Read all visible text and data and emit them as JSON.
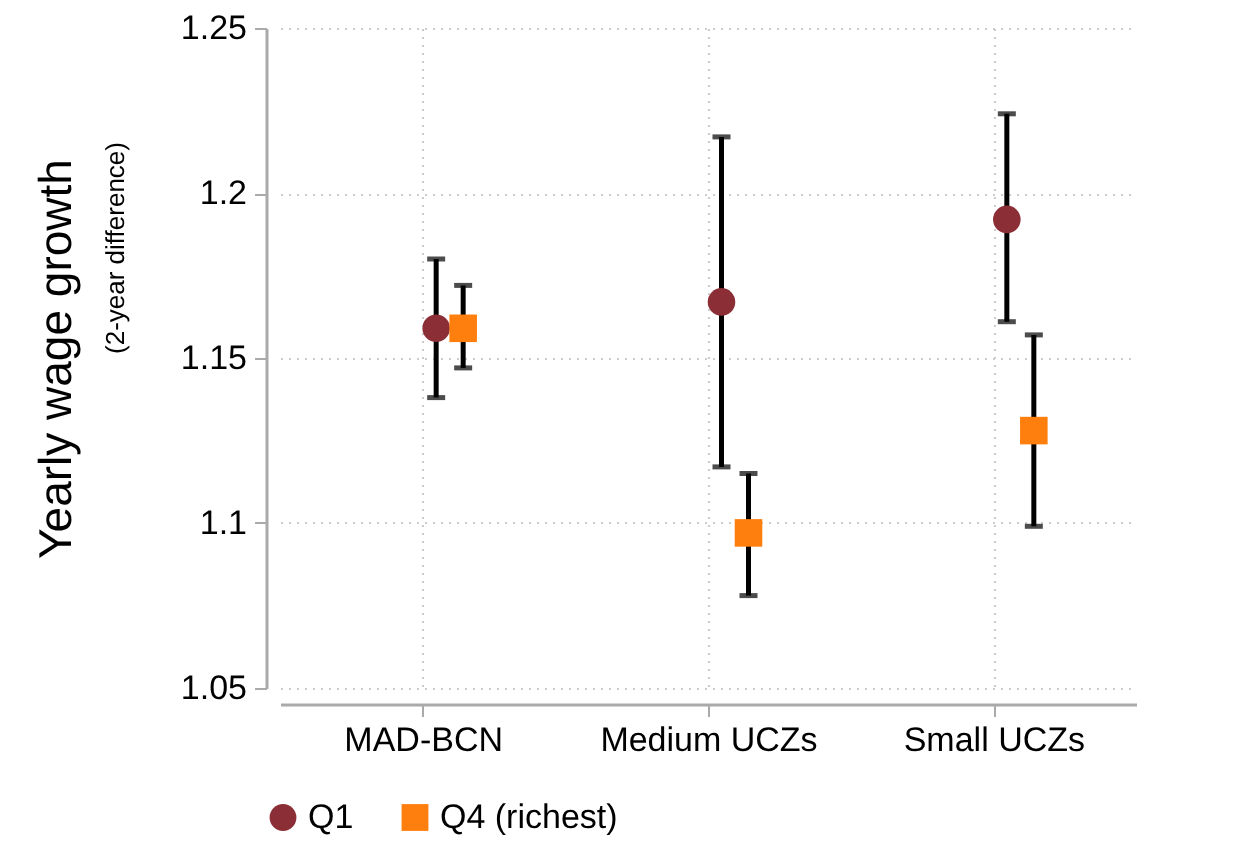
{
  "chart_data": {
    "type": "scatter",
    "ylabel": [
      "Yearly wage growth",
      "(2-year difference)"
    ],
    "categories": [
      "MAD-BCN",
      "Medium UCZs",
      "Small UCZs"
    ],
    "series": [
      {
        "name": "Q1",
        "color": "#8b2e36",
        "marker": "circle",
        "values": [
          1.159,
          1.167,
          1.192
        ],
        "errors": [
          [
            1.138,
            1.18
          ],
          [
            1.117,
            1.217
          ],
          [
            1.161,
            1.224
          ]
        ]
      },
      {
        "name": "Q4 (richest)",
        "color": "#ff7f0e",
        "marker": "square",
        "values": [
          1.159,
          1.097,
          1.128
        ],
        "errors": [
          [
            1.147,
            1.172
          ],
          [
            1.078,
            1.115
          ],
          [
            1.099,
            1.157
          ]
        ]
      }
    ],
    "ylim": [
      1.05,
      1.25
    ],
    "yticks": [
      1.05,
      1.1,
      1.15,
      1.2,
      1.25
    ],
    "grid": true,
    "legend": "bottom"
  }
}
